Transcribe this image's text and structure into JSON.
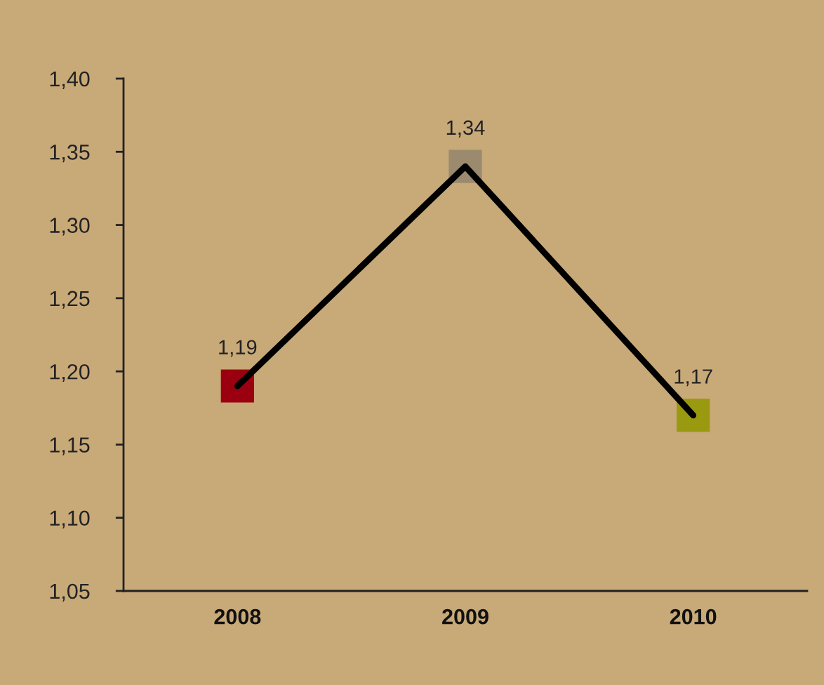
{
  "chart_data": {
    "type": "line",
    "categories": [
      "2008",
      "2009",
      "2010"
    ],
    "series": [
      {
        "color": "#000000",
        "colors": [
          "#9a0010",
          "#9c8a6e",
          "#9a9a10"
        ],
        "values": [
          1.19,
          1.34,
          1.17
        ],
        "value_labels": [
          "1,19",
          "1,34",
          "1,17"
        ]
      }
    ],
    "ylim": [
      1.05,
      1.4
    ],
    "yticks": [
      {
        "value": 1.05,
        "label": "1,05"
      },
      {
        "value": 1.1,
        "label": "1,10"
      },
      {
        "value": 1.15,
        "label": "1,15"
      },
      {
        "value": 1.2,
        "label": "1,20"
      },
      {
        "value": 1.25,
        "label": "1,25"
      },
      {
        "value": 1.3,
        "label": "1,30"
      },
      {
        "value": 1.35,
        "label": "1,35"
      },
      {
        "value": 1.4,
        "label": "1,40"
      }
    ],
    "marker": "square",
    "grid": false,
    "legend": false
  }
}
